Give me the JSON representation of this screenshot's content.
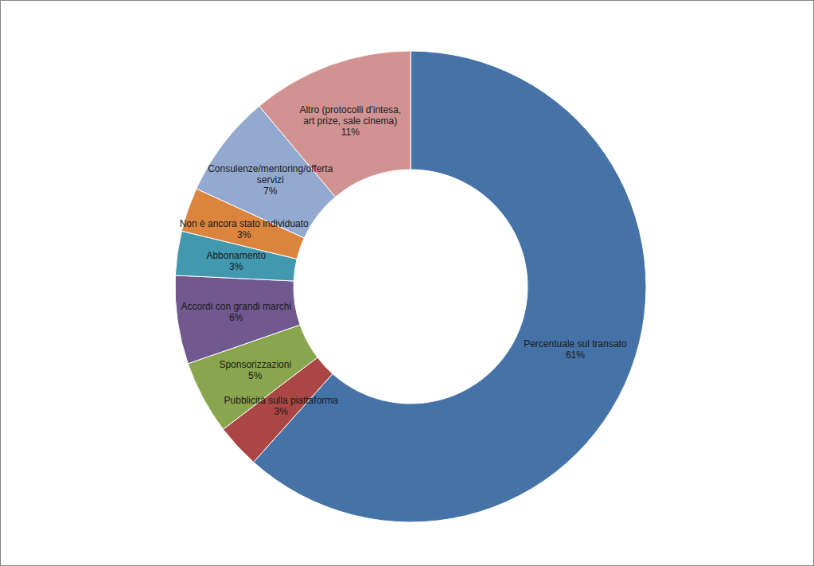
{
  "chart_data": {
    "type": "pie",
    "categories": [
      "Percentuale sul transato",
      "Pubblicità sulla piattaforma",
      "Sponsorizzazioni",
      "Accordi con grandi marchi",
      "Abbonamento",
      "Non è ancora stato individuato",
      "Consulenze/mentoring/offerta servizi",
      "Altro (protocolli d'intesa, art prize, sale cinema)"
    ],
    "values": [
      61,
      3,
      5,
      6,
      3,
      3,
      7,
      11
    ],
    "value_labels": [
      "61%",
      "3%",
      "5%",
      "6%",
      "3%",
      "3%",
      "7%",
      "11%"
    ],
    "colors": [
      "#4572A7",
      "#AA4643",
      "#89A54E",
      "#71588F",
      "#4198AF",
      "#DB843D",
      "#93A9CF",
      "#D19392"
    ],
    "data_labels": true
  }
}
